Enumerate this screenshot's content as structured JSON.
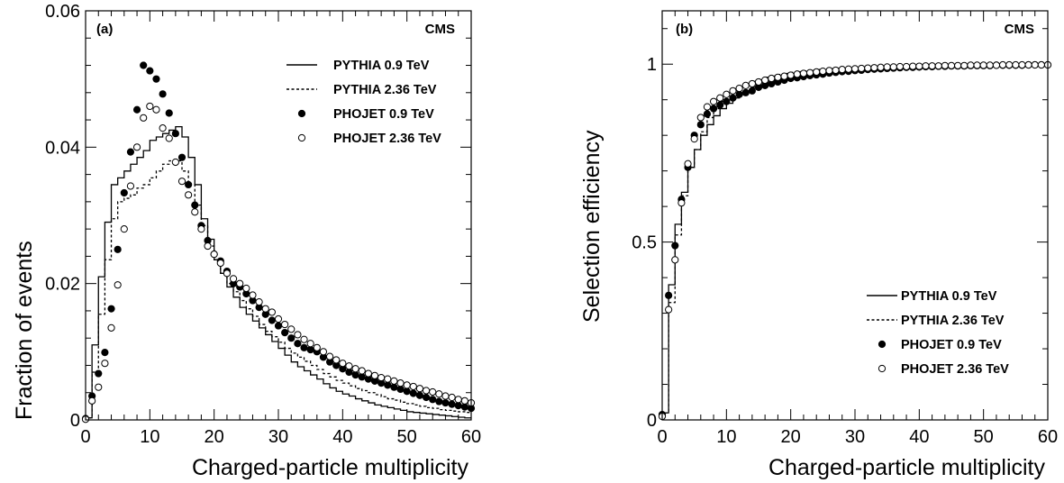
{
  "chart_data": [
    {
      "type": "line",
      "panel_label": "(a)",
      "experiment_label": "CMS",
      "xlabel": "Charged-particle multiplicity",
      "ylabel": "Fraction of events",
      "xlim": [
        0,
        60
      ],
      "ylim": [
        0,
        0.06
      ],
      "x_ticks": [
        0,
        10,
        20,
        30,
        40,
        50,
        60
      ],
      "x_tick_labels": [
        "0",
        "10",
        "20",
        "30",
        "40",
        "50",
        "60"
      ],
      "y_ticks": [
        0,
        0.02,
        0.04,
        0.06
      ],
      "y_tick_labels": [
        "0",
        "0.02",
        "0.04",
        "0.06"
      ],
      "legend_position": "top-right",
      "series": [
        {
          "name": "PYTHIA 0.9 TeV",
          "style": "solid-histogram",
          "x": [
            0,
            1,
            2,
            3,
            4,
            5,
            6,
            7,
            8,
            9,
            10,
            11,
            12,
            13,
            14,
            15,
            16,
            17,
            18,
            19,
            20,
            21,
            22,
            23,
            24,
            25,
            26,
            27,
            28,
            29,
            30,
            31,
            32,
            33,
            34,
            35,
            36,
            37,
            38,
            39,
            40,
            41,
            42,
            43,
            44,
            45,
            46,
            47,
            48,
            49,
            50,
            51,
            52,
            53,
            54,
            55,
            56,
            57,
            58,
            59
          ],
          "values": [
            0.0003,
            0.011,
            0.021,
            0.029,
            0.0345,
            0.0355,
            0.0365,
            0.0375,
            0.0385,
            0.0395,
            0.041,
            0.0415,
            0.042,
            0.0425,
            0.043,
            0.0415,
            0.0385,
            0.0345,
            0.0295,
            0.0265,
            0.0235,
            0.0215,
            0.0195,
            0.018,
            0.0165,
            0.0155,
            0.0145,
            0.0135,
            0.0125,
            0.0115,
            0.0105,
            0.0095,
            0.0085,
            0.0078,
            0.0072,
            0.0066,
            0.006,
            0.0053,
            0.0047,
            0.0042,
            0.0038,
            0.0035,
            0.0031,
            0.0028,
            0.0025,
            0.0022,
            0.002,
            0.0018,
            0.0016,
            0.0014,
            0.0012,
            0.0011,
            0.001,
            0.0009,
            0.0008,
            0.0007,
            0.0006,
            0.0005,
            0.0004,
            0.0003
          ]
        },
        {
          "name": "PYTHIA 2.36 TeV",
          "style": "dotted-histogram",
          "x": [
            0,
            1,
            2,
            3,
            4,
            5,
            6,
            7,
            8,
            9,
            10,
            11,
            12,
            13,
            14,
            15,
            16,
            17,
            18,
            19,
            20,
            21,
            22,
            23,
            24,
            25,
            26,
            27,
            28,
            29,
            30,
            31,
            32,
            33,
            34,
            35,
            36,
            37,
            38,
            39,
            40,
            41,
            42,
            43,
            44,
            45,
            46,
            47,
            48,
            49,
            50,
            51,
            52,
            53,
            54,
            55,
            56,
            57,
            58,
            59
          ],
          "values": [
            0.0003,
            0.007,
            0.0155,
            0.0235,
            0.0295,
            0.032,
            0.0325,
            0.033,
            0.034,
            0.0345,
            0.0355,
            0.0365,
            0.0375,
            0.038,
            0.038,
            0.0365,
            0.0345,
            0.0315,
            0.0285,
            0.0255,
            0.0235,
            0.0215,
            0.02,
            0.0188,
            0.0175,
            0.0163,
            0.0152,
            0.014,
            0.013,
            0.0122,
            0.0114,
            0.0105,
            0.0098,
            0.0092,
            0.0086,
            0.008,
            0.0074,
            0.0068,
            0.0063,
            0.0058,
            0.0054,
            0.005,
            0.0046,
            0.0043,
            0.004,
            0.0037,
            0.0034,
            0.0031,
            0.0029,
            0.0026,
            0.0024,
            0.0022,
            0.002,
            0.0018,
            0.0017,
            0.0015,
            0.0014,
            0.0013,
            0.0012,
            0.0011
          ]
        },
        {
          "name": "PHOJET 0.9 TeV",
          "style": "filled-circle",
          "x": [
            0,
            1,
            2,
            3,
            4,
            5,
            6,
            7,
            8,
            9,
            10,
            11,
            12,
            13,
            14,
            15,
            16,
            17,
            18,
            19,
            20,
            21,
            22,
            23,
            24,
            25,
            26,
            27,
            28,
            29,
            30,
            31,
            32,
            33,
            34,
            35,
            36,
            37,
            38,
            39,
            40,
            41,
            42,
            43,
            44,
            45,
            46,
            47,
            48,
            49,
            50,
            51,
            52,
            53,
            54,
            55,
            56,
            57,
            58,
            59,
            60
          ],
          "values": [
            0.0002,
            0.0035,
            0.0068,
            0.0099,
            0.0163,
            0.025,
            0.0333,
            0.0393,
            0.0455,
            0.052,
            0.0512,
            0.05,
            0.0478,
            0.045,
            0.042,
            0.0385,
            0.0345,
            0.0315,
            0.0285,
            0.0263,
            0.0243,
            0.0233,
            0.0218,
            0.02,
            0.0195,
            0.0185,
            0.0175,
            0.0165,
            0.0155,
            0.0146,
            0.0138,
            0.0128,
            0.012,
            0.0112,
            0.0106,
            0.0103,
            0.01,
            0.0092,
            0.0085,
            0.008,
            0.0075,
            0.007,
            0.0066,
            0.0063,
            0.006,
            0.0057,
            0.0054,
            0.0051,
            0.0048,
            0.0045,
            0.0042,
            0.0039,
            0.0036,
            0.0033,
            0.003,
            0.0027,
            0.0025,
            0.0023,
            0.0021,
            0.0019,
            0.0017
          ]
        },
        {
          "name": "PHOJET 2.36 TeV",
          "style": "open-circle",
          "x": [
            0,
            1,
            2,
            3,
            4,
            5,
            6,
            7,
            8,
            9,
            10,
            11,
            12,
            13,
            14,
            15,
            16,
            17,
            18,
            19,
            20,
            21,
            22,
            23,
            24,
            25,
            26,
            27,
            28,
            29,
            30,
            31,
            32,
            33,
            34,
            35,
            36,
            37,
            38,
            39,
            40,
            41,
            42,
            43,
            44,
            45,
            46,
            47,
            48,
            49,
            50,
            51,
            52,
            53,
            54,
            55,
            56,
            57,
            58,
            59,
            60
          ],
          "values": [
            0.0001,
            0.0028,
            0.0048,
            0.0083,
            0.0135,
            0.0198,
            0.028,
            0.0343,
            0.04,
            0.0443,
            0.046,
            0.0455,
            0.0428,
            0.0413,
            0.0378,
            0.035,
            0.033,
            0.0305,
            0.028,
            0.0255,
            0.0243,
            0.023,
            0.0215,
            0.0207,
            0.02,
            0.0193,
            0.0183,
            0.0173,
            0.0163,
            0.0158,
            0.0148,
            0.014,
            0.0133,
            0.0125,
            0.0118,
            0.0112,
            0.0106,
            0.01,
            0.0093,
            0.0088,
            0.0083,
            0.0079,
            0.0075,
            0.0072,
            0.0068,
            0.0065,
            0.0062,
            0.006,
            0.0057,
            0.0054,
            0.0051,
            0.0049,
            0.0046,
            0.0043,
            0.0041,
            0.0038,
            0.0035,
            0.0033,
            0.003,
            0.0028,
            0.0025
          ]
        }
      ]
    },
    {
      "type": "line",
      "panel_label": "(b)",
      "experiment_label": "CMS",
      "xlabel": "Charged-particle multiplicity",
      "ylabel": "Selection efficiency",
      "xlim": [
        0,
        60
      ],
      "ylim": [
        0,
        1.15
      ],
      "x_ticks": [
        0,
        10,
        20,
        30,
        40,
        50,
        60
      ],
      "x_tick_labels": [
        "0",
        "10",
        "20",
        "30",
        "40",
        "50",
        "60"
      ],
      "y_ticks": [
        0,
        0.5,
        1
      ],
      "y_tick_labels": [
        "0",
        "0.5",
        "1"
      ],
      "legend_position": "bottom-right",
      "series": [
        {
          "name": "PYTHIA 0.9 TeV",
          "style": "solid-histogram",
          "x": [
            0,
            1,
            2,
            3,
            4,
            5,
            6,
            7,
            8,
            9,
            10,
            11,
            12,
            13,
            14,
            15,
            16,
            17,
            18,
            19,
            20,
            21,
            22,
            23,
            24,
            25,
            26,
            27,
            28,
            29,
            30,
            31,
            32,
            33,
            34,
            35,
            36,
            37,
            38,
            39,
            40,
            41,
            42,
            43,
            44,
            45,
            46,
            47,
            48,
            49,
            50,
            51,
            52,
            53,
            54,
            55,
            56,
            57,
            58,
            59
          ],
          "values": [
            0.02,
            0.38,
            0.55,
            0.64,
            0.71,
            0.76,
            0.8,
            0.83,
            0.855,
            0.875,
            0.89,
            0.905,
            0.915,
            0.925,
            0.935,
            0.94,
            0.947,
            0.953,
            0.958,
            0.962,
            0.966,
            0.97,
            0.973,
            0.976,
            0.978,
            0.98,
            0.982,
            0.984,
            0.985,
            0.987,
            0.988,
            0.989,
            0.99,
            0.991,
            0.992,
            0.992,
            0.993,
            0.993,
            0.994,
            0.994,
            0.995,
            0.995,
            0.995,
            0.996,
            0.996,
            0.996,
            0.996,
            0.997,
            0.997,
            0.997,
            0.997,
            0.997,
            0.997,
            0.998,
            0.998,
            0.998,
            0.998,
            0.998,
            0.998,
            0.998
          ]
        },
        {
          "name": "PYTHIA 2.36 TeV",
          "style": "dotted-histogram",
          "x": [
            0,
            1,
            2,
            3,
            4,
            5,
            6,
            7,
            8,
            9,
            10,
            11,
            12,
            13,
            14,
            15,
            16,
            17,
            18,
            19,
            20,
            21,
            22,
            23,
            24,
            25,
            26,
            27,
            28,
            29,
            30,
            31,
            32,
            33,
            34,
            35,
            36,
            37,
            38,
            39,
            40,
            41,
            42,
            43,
            44,
            45,
            46,
            47,
            48,
            49,
            50,
            51,
            52,
            53,
            54,
            55,
            56,
            57,
            58,
            59
          ],
          "values": [
            0.02,
            0.33,
            0.52,
            0.63,
            0.71,
            0.76,
            0.81,
            0.85,
            0.875,
            0.895,
            0.91,
            0.925,
            0.935,
            0.945,
            0.952,
            0.958,
            0.963,
            0.967,
            0.971,
            0.974,
            0.977,
            0.979,
            0.981,
            0.983,
            0.985,
            0.986,
            0.987,
            0.988,
            0.989,
            0.99,
            0.991,
            0.992,
            0.992,
            0.993,
            0.993,
            0.994,
            0.994,
            0.995,
            0.995,
            0.995,
            0.996,
            0.996,
            0.996,
            0.996,
            0.997,
            0.997,
            0.997,
            0.997,
            0.997,
            0.998,
            0.998,
            0.998,
            0.998,
            0.998,
            0.998,
            0.998,
            0.999,
            0.999,
            0.999,
            0.999
          ]
        },
        {
          "name": "PHOJET 0.9 TeV",
          "style": "filled-circle",
          "x": [
            0,
            1,
            2,
            3,
            4,
            5,
            6,
            7,
            8,
            9,
            10,
            11,
            12,
            13,
            14,
            15,
            16,
            17,
            18,
            19,
            20,
            21,
            22,
            23,
            24,
            25,
            26,
            27,
            28,
            29,
            30,
            31,
            32,
            33,
            34,
            35,
            36,
            37,
            38,
            39,
            40,
            41,
            42,
            43,
            44,
            45,
            46,
            47,
            48,
            49,
            50,
            51,
            52,
            53,
            54,
            55,
            56,
            57,
            58,
            59,
            60
          ],
          "values": [
            0.015,
            0.35,
            0.49,
            0.62,
            0.71,
            0.8,
            0.83,
            0.86,
            0.875,
            0.885,
            0.895,
            0.905,
            0.915,
            0.92,
            0.925,
            0.935,
            0.94,
            0.945,
            0.95,
            0.955,
            0.96,
            0.962,
            0.965,
            0.968,
            0.97,
            0.972,
            0.975,
            0.977,
            0.979,
            0.98,
            0.982,
            0.983,
            0.985,
            0.986,
            0.987,
            0.988,
            0.989,
            0.99,
            0.991,
            0.991,
            0.992,
            0.993,
            0.993,
            0.994,
            0.994,
            0.995,
            0.995,
            0.995,
            0.996,
            0.996,
            0.996,
            0.996,
            0.997,
            0.997,
            0.997,
            0.997,
            0.997,
            0.998,
            0.998,
            0.998,
            0.998
          ]
        },
        {
          "name": "PHOJET 2.36 TeV",
          "style": "open-circle",
          "x": [
            0,
            1,
            2,
            3,
            4,
            5,
            6,
            7,
            8,
            9,
            10,
            11,
            12,
            13,
            14,
            15,
            16,
            17,
            18,
            19,
            20,
            21,
            22,
            23,
            24,
            25,
            26,
            27,
            28,
            29,
            30,
            31,
            32,
            33,
            34,
            35,
            36,
            37,
            38,
            39,
            40,
            41,
            42,
            43,
            44,
            45,
            46,
            47,
            48,
            49,
            50,
            51,
            52,
            53,
            54,
            55,
            56,
            57,
            58,
            59,
            60
          ],
          "values": [
            0.01,
            0.31,
            0.45,
            0.61,
            0.72,
            0.79,
            0.85,
            0.88,
            0.895,
            0.905,
            0.915,
            0.925,
            0.932,
            0.94,
            0.945,
            0.95,
            0.955,
            0.96,
            0.963,
            0.966,
            0.969,
            0.972,
            0.974,
            0.976,
            0.978,
            0.98,
            0.982,
            0.983,
            0.985,
            0.986,
            0.987,
            0.988,
            0.989,
            0.99,
            0.991,
            0.992,
            0.992,
            0.993,
            0.993,
            0.994,
            0.994,
            0.995,
            0.995,
            0.995,
            0.996,
            0.996,
            0.996,
            0.996,
            0.997,
            0.997,
            0.997,
            0.997,
            0.997,
            0.998,
            0.998,
            0.998,
            0.998,
            0.998,
            0.998,
            0.998,
            0.998
          ]
        }
      ]
    }
  ]
}
